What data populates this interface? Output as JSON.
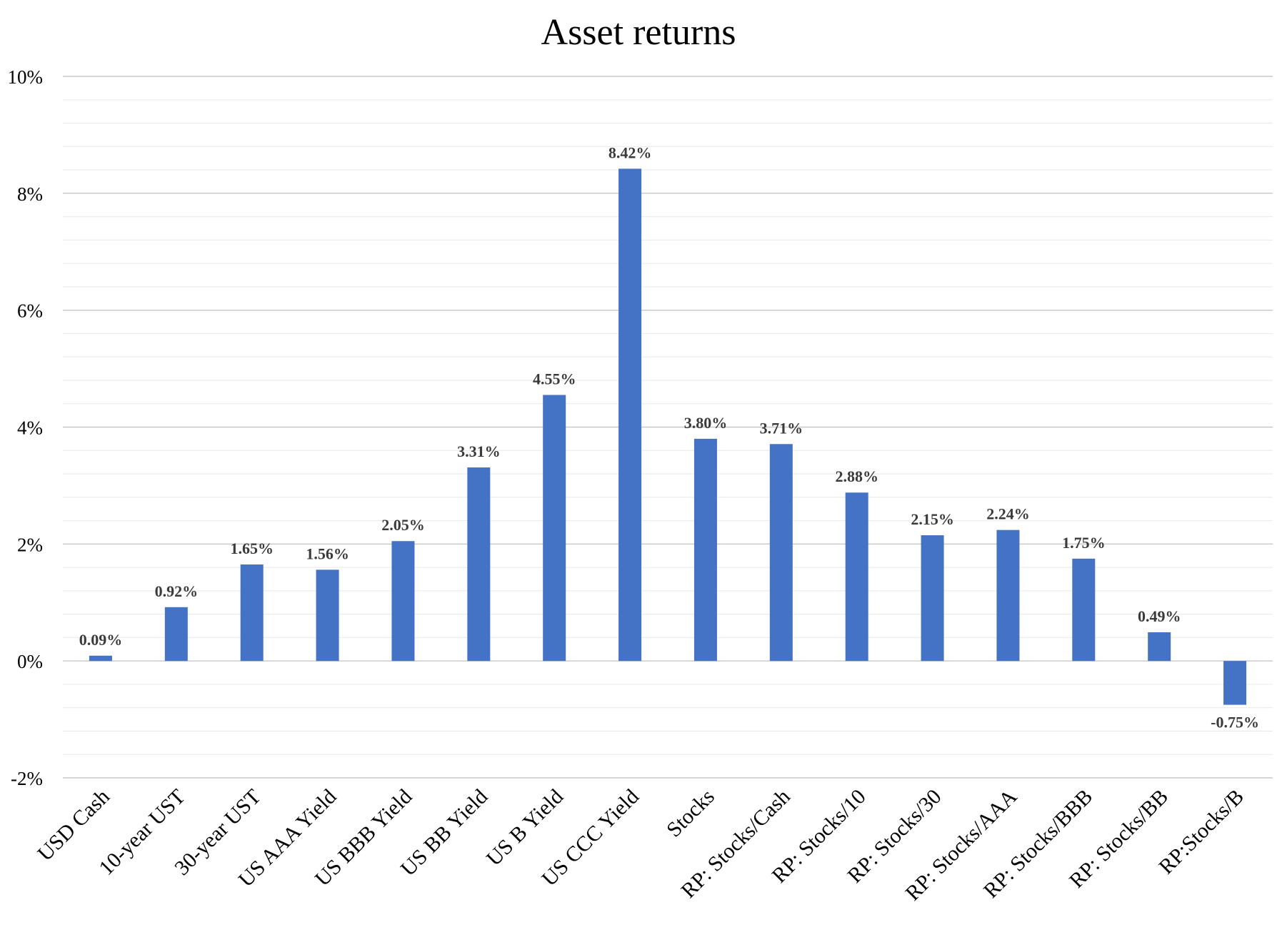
{
  "chart_data": {
    "type": "bar",
    "title": "Asset returns",
    "xlabel": "",
    "ylabel": "",
    "categories": [
      "USD Cash",
      "10-year UST",
      "30-year UST",
      "US AAA Yield",
      "US BBB Yield",
      "US BB Yield",
      "US B Yield",
      "US CCC Yield",
      "Stocks",
      "RP: Stocks/Cash",
      "RP: Stocks/10",
      "RP: Stocks/30",
      "RP: Stocks/AAA",
      "RP: Stocks/BBB",
      "RP: Stocks/BB",
      "RP:Stocks/B"
    ],
    "values": [
      0.09,
      0.92,
      1.65,
      1.56,
      2.05,
      3.31,
      4.55,
      8.42,
      3.8,
      3.71,
      2.88,
      2.15,
      2.24,
      1.75,
      0.49,
      -0.75
    ],
    "data_labels": [
      "0.09%",
      "0.92%",
      "1.65%",
      "1.56%",
      "2.05%",
      "3.31%",
      "4.55%",
      "8.42%",
      "3.80%",
      "3.71%",
      "2.88%",
      "2.15%",
      "2.24%",
      "1.75%",
      "0.49%",
      "-0.75%"
    ],
    "ylim": [
      -2,
      10
    ],
    "yticks": [
      -2,
      0,
      2,
      4,
      6,
      8,
      10
    ],
    "ytick_labels": [
      "-2%",
      "0%",
      "2%",
      "4%",
      "6%",
      "8%",
      "10%"
    ],
    "minor_grid_step": 0.4,
    "grid": true,
    "legend": "none",
    "bar_color": "#4472C4",
    "label_color": "#3a3a3a"
  }
}
